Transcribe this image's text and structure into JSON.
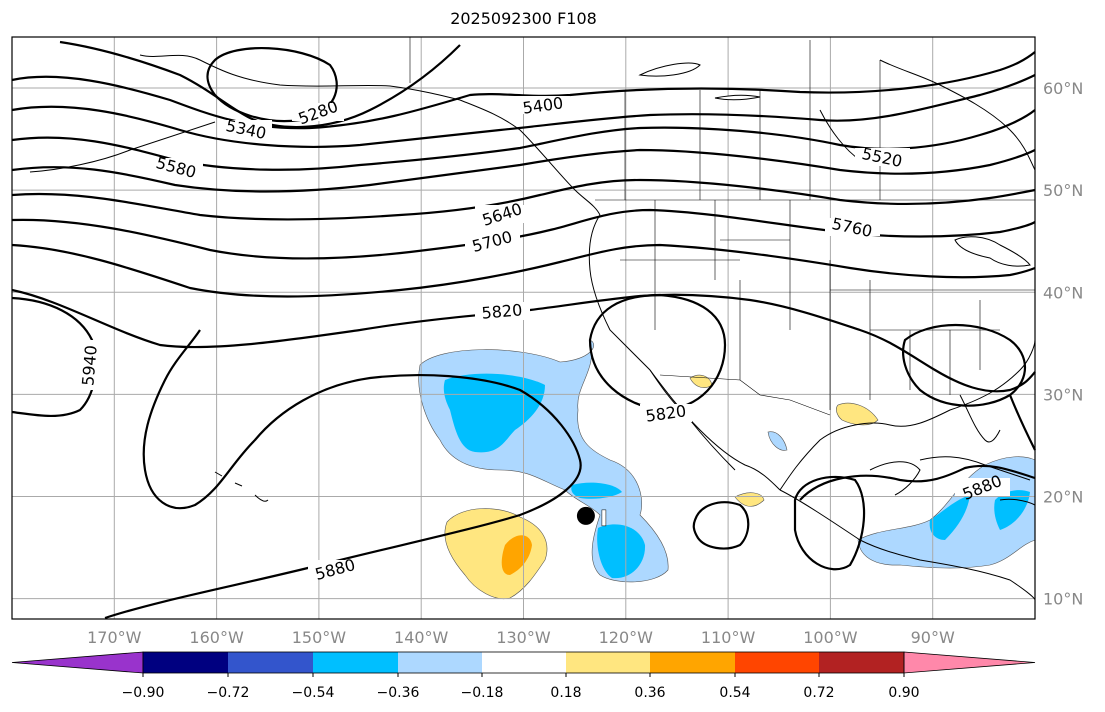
{
  "title": "2025092300 F108",
  "map": {
    "lon_range": [
      -180,
      -80
    ],
    "lat_range": [
      8,
      65
    ],
    "lon_ticks": [
      {
        "lon": -170,
        "label": "170°W"
      },
      {
        "lon": -160,
        "label": "160°W"
      },
      {
        "lon": -150,
        "label": "150°W"
      },
      {
        "lon": -140,
        "label": "140°W"
      },
      {
        "lon": -130,
        "label": "130°W"
      },
      {
        "lon": -120,
        "label": "120°W"
      },
      {
        "lon": -110,
        "label": "110°W"
      },
      {
        "lon": -100,
        "label": "100°W"
      },
      {
        "lon": -90,
        "label": "90°W"
      }
    ],
    "lat_ticks": [
      {
        "lat": 60,
        "label": "60°N"
      },
      {
        "lat": 50,
        "label": "50°N"
      },
      {
        "lat": 40,
        "label": "40°N"
      },
      {
        "lat": 30,
        "label": "30°N"
      },
      {
        "lat": 20,
        "label": "20°N"
      },
      {
        "lat": 10,
        "label": "10°N"
      }
    ],
    "contour_labels": [
      "5280",
      "5340",
      "5400",
      "5520",
      "5580",
      "5640",
      "5700",
      "5760",
      "5820",
      "5820",
      "5880",
      "5880",
      "5940"
    ],
    "storm_marker": {
      "lon": -123.9,
      "lat": 18.1
    }
  },
  "colorbar": {
    "colors": [
      "#9933cc",
      "#000080",
      "#3355cc",
      "#00bfff",
      "#add8ff",
      "#ffffff",
      "#ffe680",
      "#ffa500",
      "#ff4500",
      "#b22222",
      "#ff88aa"
    ],
    "ticks": [
      "−0.90",
      "−0.72",
      "−0.54",
      "−0.36",
      "−0.18",
      "0.18",
      "0.36",
      "0.54",
      "0.72",
      "0.90"
    ]
  }
}
